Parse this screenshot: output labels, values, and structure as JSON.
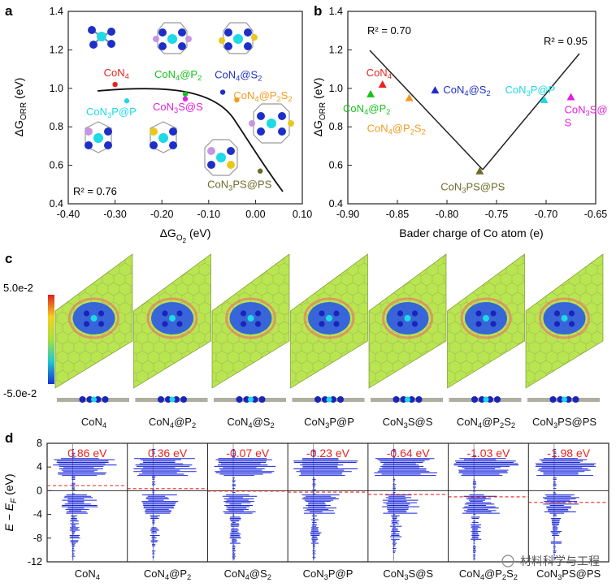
{
  "panel_labels": {
    "a": "a",
    "b": "b",
    "c": "c",
    "d": "d"
  },
  "colors": {
    "CoN4": "#e8231f",
    "CoN4@P2": "#18c21a",
    "CoN4@S2": "#1e2fc8",
    "CoN4@P2S2": "#f39a1e",
    "CoN3P@P": "#1ed9e6",
    "CoN3S@S": "#e21fe0",
    "CoN3PS@PS": "#6e6a2a",
    "accent_red": "#e8231f",
    "dos_blue": "#1422d8"
  },
  "panel_a": {
    "xlabel_base": "ΔG",
    "xlabel_sub": "O",
    "xlabel_subsub": "2",
    "xlabel_unit": " (eV)",
    "ylabel_base": "ΔG",
    "ylabel_sub": "ORR",
    "ylabel_unit": " (eV)",
    "r2": "R² = 0.76",
    "xticks": [
      "-0.40",
      "-0.30",
      "-0.20",
      "-0.10",
      "0.00",
      "0.10"
    ],
    "yticks": [
      "0.4",
      "0.6",
      "0.8",
      "1.0",
      "1.2",
      "1.4"
    ]
  },
  "panel_b": {
    "xlabel": "Bader charge of Co atom (e)",
    "ylabel_base": "ΔG",
    "ylabel_sub": "ORR",
    "ylabel_unit": " (eV)",
    "r2_left": "R² = 0.70",
    "r2_right": "R² = 0.95",
    "xticks": [
      "-0.90",
      "-0.85",
      "-0.80",
      "-0.75",
      "-0.70",
      "-0.65"
    ],
    "yticks": [
      "0.4",
      "0.6",
      "0.8",
      "1.0",
      "1.2",
      "1.4"
    ]
  },
  "panel_c": {
    "scale_max": "5.0e-2",
    "scale_min": "-5.0e-2"
  },
  "panel_d": {
    "ylabel": "E − E",
    "ylabel_sub": "F",
    "ylabel_unit": " (eV)",
    "yticks": [
      "8",
      "4",
      "0",
      "-4",
      "-8",
      "-12"
    ],
    "shifts": [
      "0.86 eV",
      "0.36 eV",
      "-0.07 eV",
      "-0.23 eV",
      "-0.64 eV",
      "-1.03 eV",
      "-1.98 eV"
    ]
  },
  "structures": [
    "CoN4",
    "CoN4@P2",
    "CoN4@S2",
    "CoN3P@P",
    "CoN3S@S",
    "CoN4@P2S2",
    "CoN3PS@PS"
  ],
  "watermark": "材料科学与工程",
  "chart_data": [
    {
      "type": "scatter",
      "title": "",
      "xlabel": "ΔG_O2 (eV)",
      "ylabel": "ΔG_ORR (eV)",
      "xlim": [
        -0.4,
        0.1
      ],
      "ylim": [
        0.4,
        1.4
      ],
      "grid": false,
      "points": [
        {
          "label": "CoN4",
          "x": -0.3,
          "y": 1.02
        },
        {
          "label": "CoN4@P2",
          "x": -0.15,
          "y": 0.97
        },
        {
          "label": "CoN4@S2",
          "x": -0.07,
          "y": 0.98
        },
        {
          "label": "CoN4@P2S2",
          "x": -0.04,
          "y": 0.94
        },
        {
          "label": "CoN3P@P",
          "x": -0.275,
          "y": 0.935
        },
        {
          "label": "CoN3S@S",
          "x": -0.15,
          "y": 0.945
        },
        {
          "label": "CoN3PS@PS",
          "x": 0.01,
          "y": 0.57
        }
      ],
      "fit_annotation": "R² = 0.76"
    },
    {
      "type": "scatter",
      "title": "",
      "xlabel": "Bader charge of Co atom (e)",
      "ylabel": "ΔG_ORR (eV)",
      "xlim": [
        -0.9,
        -0.65
      ],
      "ylim": [
        0.4,
        1.4
      ],
      "grid": false,
      "points": [
        {
          "label": "CoN4",
          "x": -0.865,
          "y": 1.02
        },
        {
          "label": "CoN4@P2",
          "x": -0.877,
          "y": 0.97
        },
        {
          "label": "CoN4@P2S2",
          "x": -0.838,
          "y": 0.95
        },
        {
          "label": "CoN4@S2",
          "x": -0.812,
          "y": 0.99
        },
        {
          "label": "CoN3PS@PS",
          "x": -0.767,
          "y": 0.57
        },
        {
          "label": "CoN3P@P",
          "x": -0.702,
          "y": 0.94
        },
        {
          "label": "CoN3S@S",
          "x": -0.675,
          "y": 0.955
        }
      ],
      "fit_annotations": [
        "R² = 0.70",
        "R² = 0.95"
      ]
    }
  ]
}
